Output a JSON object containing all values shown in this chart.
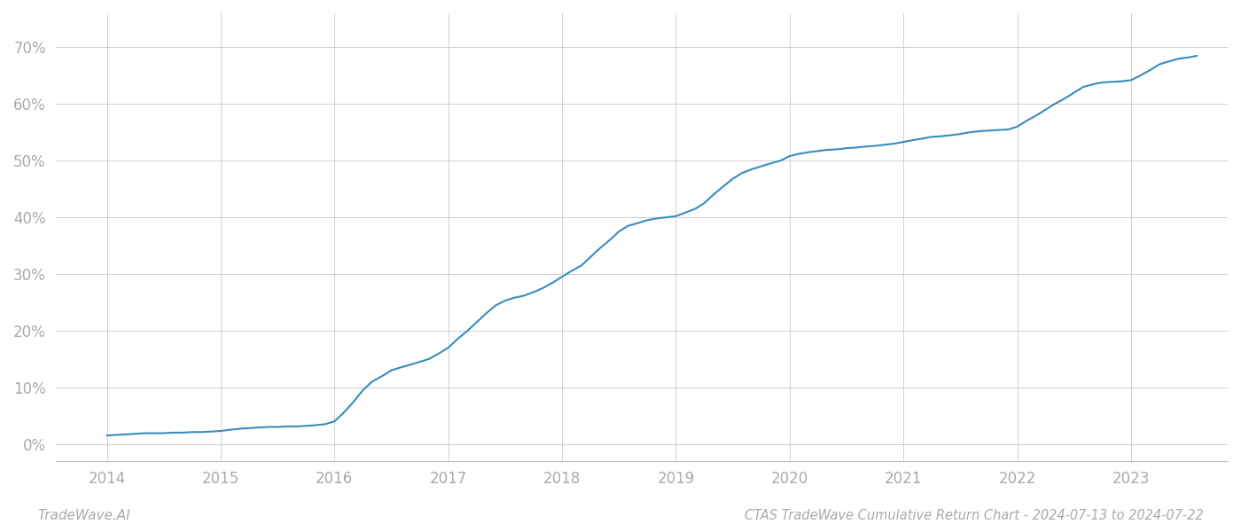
{
  "title": "CTAS TradeWave Cumulative Return Chart - 2024-07-13 to 2024-07-22",
  "watermark": "TradeWave.AI",
  "line_color": "#3a8bbf",
  "background_color": "#ffffff",
  "grid_color": "#d0d0d0",
  "x_values": [
    2014.0,
    2014.08,
    2014.17,
    2014.25,
    2014.33,
    2014.42,
    2014.5,
    2014.58,
    2014.67,
    2014.75,
    2014.83,
    2014.92,
    2015.0,
    2015.08,
    2015.17,
    2015.25,
    2015.33,
    2015.42,
    2015.5,
    2015.58,
    2015.67,
    2015.75,
    2015.83,
    2015.92,
    2016.0,
    2016.08,
    2016.17,
    2016.25,
    2016.33,
    2016.42,
    2016.5,
    2016.58,
    2016.67,
    2016.75,
    2016.83,
    2016.92,
    2017.0,
    2017.08,
    2017.17,
    2017.25,
    2017.33,
    2017.42,
    2017.5,
    2017.58,
    2017.67,
    2017.75,
    2017.83,
    2017.92,
    2018.0,
    2018.08,
    2018.17,
    2018.25,
    2018.33,
    2018.42,
    2018.5,
    2018.58,
    2018.67,
    2018.75,
    2018.83,
    2018.92,
    2019.0,
    2019.08,
    2019.17,
    2019.25,
    2019.33,
    2019.42,
    2019.5,
    2019.58,
    2019.67,
    2019.75,
    2019.83,
    2019.92,
    2020.0,
    2020.08,
    2020.17,
    2020.25,
    2020.33,
    2020.42,
    2020.5,
    2020.58,
    2020.67,
    2020.75,
    2020.83,
    2020.92,
    2021.0,
    2021.08,
    2021.17,
    2021.25,
    2021.33,
    2021.42,
    2021.5,
    2021.58,
    2021.67,
    2021.75,
    2021.83,
    2021.92,
    2022.0,
    2022.08,
    2022.17,
    2022.25,
    2022.33,
    2022.42,
    2022.5,
    2022.58,
    2022.67,
    2022.75,
    2022.83,
    2022.92,
    2023.0,
    2023.08,
    2023.17,
    2023.25,
    2023.33,
    2023.42,
    2023.5,
    2023.58
  ],
  "y_values": [
    1.5,
    1.6,
    1.7,
    1.8,
    1.9,
    1.9,
    1.9,
    2.0,
    2.0,
    2.1,
    2.1,
    2.2,
    2.3,
    2.5,
    2.7,
    2.8,
    2.9,
    3.0,
    3.0,
    3.1,
    3.1,
    3.2,
    3.3,
    3.5,
    4.0,
    5.5,
    7.5,
    9.5,
    11.0,
    12.0,
    13.0,
    13.5,
    14.0,
    14.5,
    15.0,
    16.0,
    17.0,
    18.5,
    20.0,
    21.5,
    23.0,
    24.5,
    25.3,
    25.8,
    26.2,
    26.8,
    27.5,
    28.5,
    29.5,
    30.5,
    31.5,
    33.0,
    34.5,
    36.0,
    37.5,
    38.5,
    39.0,
    39.5,
    39.8,
    40.0,
    40.2,
    40.8,
    41.5,
    42.5,
    44.0,
    45.5,
    46.8,
    47.8,
    48.5,
    49.0,
    49.5,
    50.0,
    50.8,
    51.2,
    51.5,
    51.7,
    51.9,
    52.0,
    52.2,
    52.3,
    52.5,
    52.6,
    52.8,
    53.0,
    53.3,
    53.6,
    53.9,
    54.2,
    54.3,
    54.5,
    54.7,
    55.0,
    55.2,
    55.3,
    55.4,
    55.5,
    56.0,
    57.0,
    58.0,
    59.0,
    60.0,
    61.0,
    62.0,
    63.0,
    63.5,
    63.8,
    63.9,
    64.0,
    64.2,
    65.0,
    66.0,
    67.0,
    67.5,
    68.0,
    68.2,
    68.5
  ],
  "x_ticks": [
    2014,
    2015,
    2016,
    2017,
    2018,
    2019,
    2020,
    2021,
    2022,
    2023
  ],
  "y_ticks": [
    0,
    10,
    20,
    30,
    40,
    50,
    60,
    70
  ],
  "y_labels": [
    "0%",
    "10%",
    "20%",
    "30%",
    "40%",
    "50%",
    "60%",
    "70%"
  ],
  "xlim": [
    2013.55,
    2023.85
  ],
  "ylim": [
    -3,
    76
  ],
  "tick_color": "#aaaaaa",
  "tick_fontsize": 12,
  "title_fontsize": 10.5,
  "watermark_fontsize": 11,
  "line_width": 1.5
}
